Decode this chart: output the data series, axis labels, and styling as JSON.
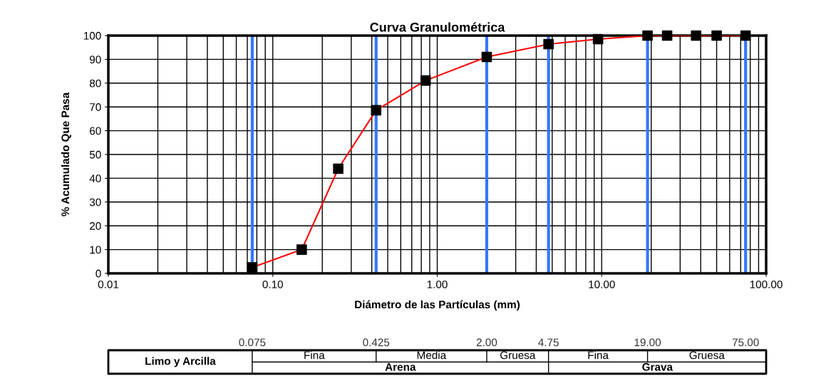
{
  "chart_data": {
    "type": "line",
    "title": "Curva Granulométrica",
    "xlabel": "Diámetro de las Partículas (mm)",
    "ylabel": "% Acumulado Que Pasa",
    "x": [
      0.075,
      0.15,
      0.25,
      0.425,
      0.85,
      2.0,
      4.75,
      9.5,
      19,
      25,
      37.5,
      50,
      75
    ],
    "series": [
      {
        "color": "#ff0000",
        "colors": [
          "#000000",
          "#000000",
          "#000000",
          "#000000",
          "#000000",
          "#000000",
          "#000000",
          "#000000",
          "#000000",
          "#000000",
          "#000000",
          "#000000",
          "#000000"
        ],
        "values": [
          2.5,
          10,
          44,
          68.6,
          81.1,
          91,
          96.4,
          98.5,
          100,
          100,
          100,
          100,
          100
        ]
      }
    ],
    "log": "x",
    "xlim": [
      0.01,
      100
    ],
    "xticks": [
      {
        "value": 0.01,
        "label": "0.01"
      },
      {
        "value": 0.1,
        "label": "0.10"
      },
      {
        "value": 1,
        "label": "1.00"
      },
      {
        "value": 10,
        "label": "10.00"
      },
      {
        "value": 100,
        "label": "100.00"
      }
    ],
    "ylim": [
      0,
      100
    ],
    "yticks": [
      0,
      10,
      20,
      30,
      40,
      50,
      60,
      70,
      80,
      90,
      100
    ],
    "grid": true,
    "marker": "square",
    "line_style": "solid",
    "ref_lines": [
      {
        "axis": "x",
        "value": 0.075,
        "color": "#3377ff"
      },
      {
        "axis": "x",
        "value": 0.425,
        "color": "#3377ff"
      },
      {
        "axis": "x",
        "value": 2.0,
        "color": "#3377ff"
      },
      {
        "axis": "x",
        "value": 4.75,
        "color": "#3377ff"
      },
      {
        "axis": "x",
        "value": 19,
        "color": "#3377ff"
      },
      {
        "axis": "x",
        "value": 75,
        "color": "#3377ff"
      }
    ],
    "annotations": [
      "0.075",
      "0.425",
      "2.00",
      "4.75",
      "19.00",
      "75.00",
      "Limo y Arcilla",
      "Fina",
      "Media",
      "Gruesa",
      "Fina",
      "Gruesa",
      "Arena",
      "Grava"
    ]
  }
}
